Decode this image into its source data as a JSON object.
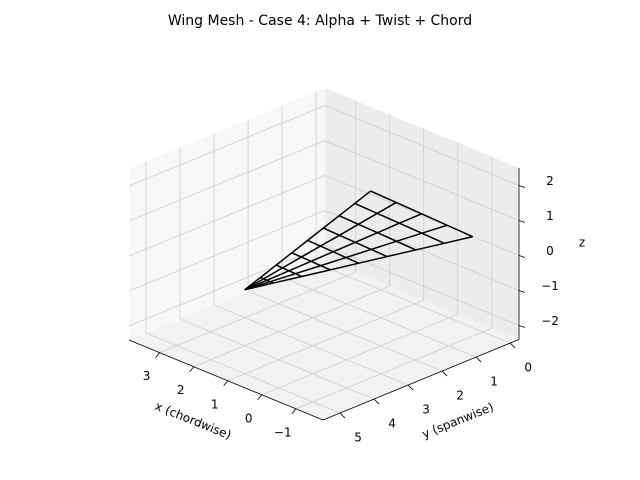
{
  "chart_data": {
    "type": "wireframe",
    "title": "Wing Mesh - Case 4: Alpha + Twist + Chord",
    "xlabel": "x (chordwise)",
    "ylabel": "y (spanwise)",
    "zlabel": "z",
    "xlim": [
      -1.8,
      3.9
    ],
    "ylim": [
      -0.26,
      5.5
    ],
    "zlim": [
      -2.4,
      2.5
    ],
    "xticks": [
      {
        "value": -1,
        "label": "−1"
      },
      0,
      1,
      2,
      3
    ],
    "yticks": [
      0,
      1,
      2,
      3,
      4,
      5
    ],
    "zticks": [
      {
        "value": -2,
        "label": "−2"
      },
      {
        "value": -1,
        "label": "−1"
      },
      0,
      1,
      2
    ],
    "grid": true,
    "color": "#000000",
    "mesh": {
      "y": [
        0,
        0.625,
        1.25,
        1.875,
        2.5,
        3.125,
        3.75,
        4.375,
        5
      ],
      "x": [
        [
          2.3,
          1.55,
          0.8,
          0.05,
          -0.7
        ],
        [
          2.14,
          1.48,
          0.83,
          0.17,
          -0.49
        ],
        [
          1.975,
          1.41,
          0.85,
          0.29,
          -0.275
        ],
        [
          1.81,
          1.34,
          0.875,
          0.41,
          -0.06
        ],
        [
          1.65,
          1.275,
          0.9,
          0.525,
          0.15
        ],
        [
          1.49,
          1.21,
          0.925,
          0.64,
          0.36
        ],
        [
          1.325,
          1.14,
          0.95,
          0.76,
          0.575
        ],
        [
          1.16,
          1.07,
          0.975,
          0.88,
          0.79
        ],
        [
          1,
          1,
          1,
          1,
          1
        ]
      ],
      "z": [
        [
          0.3,
          0.275,
          0.25,
          0.225,
          0.2
        ],
        [
          0.26,
          0.24,
          0.22,
          0.2,
          0.175
        ],
        [
          0.225,
          0.206,
          0.19,
          0.17,
          0.15
        ],
        [
          0.19,
          0.17,
          0.156,
          0.14,
          0.125
        ],
        [
          0.15,
          0.14,
          0.125,
          0.11,
          0.1
        ],
        [
          0.11,
          0.1,
          0.094,
          0.084,
          0.075
        ],
        [
          0.075,
          0.069,
          0.0625,
          0.056,
          0.05
        ],
        [
          0.0375,
          0.034,
          0.031,
          0.028,
          0.025
        ],
        [
          0,
          0,
          0,
          0,
          0
        ]
      ]
    }
  }
}
